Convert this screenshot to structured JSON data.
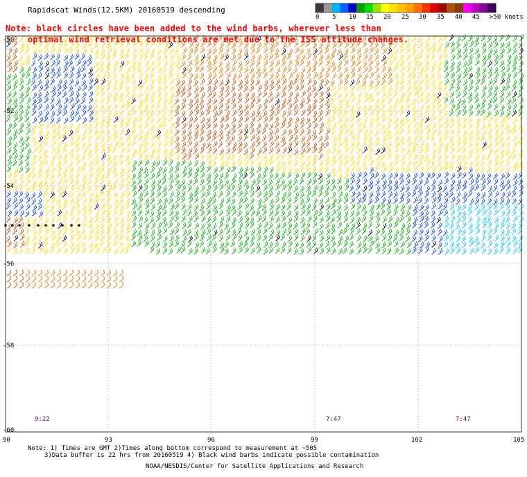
{
  "header": {
    "title": "Rapidscat Winds(12.5KM) 20160519 descending",
    "note_line1": "Note: black circles have been added to the wind barbs, wherever less than",
    "note_line2": "optimal wind retrieval conditions are met due to the ISS attitude changes."
  },
  "colorbar": {
    "labels": [
      "0",
      "5",
      "10",
      "15",
      "20",
      "25",
      "30",
      "35",
      "40",
      "45",
      ">50 knots"
    ],
    "colors": [
      "#3a3a3a",
      "#9a9a9a",
      "#00b4ff",
      "#0066ff",
      "#0000cc",
      "#00a000",
      "#00e000",
      "#a0e000",
      "#ffff00",
      "#ffe000",
      "#ffc000",
      "#ffa000",
      "#ff7000",
      "#ff3000",
      "#e00000",
      "#a00000",
      "#b05000",
      "#804000",
      "#ff00ff",
      "#c000c0",
      "#8000a0",
      "#400060"
    ]
  },
  "axes": {
    "lat_labels": [
      "-50",
      "-52",
      "-54",
      "-56",
      "-58",
      "-60"
    ],
    "lon_labels": [
      "90",
      "93",
      "96",
      "99",
      "102",
      "105"
    ]
  },
  "times": [
    "9:22",
    "7:47",
    "7:47"
  ],
  "footer": {
    "line1": "Note: 1) Times are GMT 2)Times along bottom correspond to measurement at ~50S",
    "line2": "3)Data buffer is 22 hrs from 20160519 4) Black wind barbs indicate possible contamination",
    "credit": "NOAA/NESDIS/Center for Satellite Applications and Research"
  },
  "wind_colors": {
    "yellow": "#ffd700",
    "orange": "#e87800",
    "brown": "#c85000",
    "green": "#00b000",
    "blue": "#0040ff",
    "cyan": "#00c8ff",
    "black": "#000000"
  }
}
